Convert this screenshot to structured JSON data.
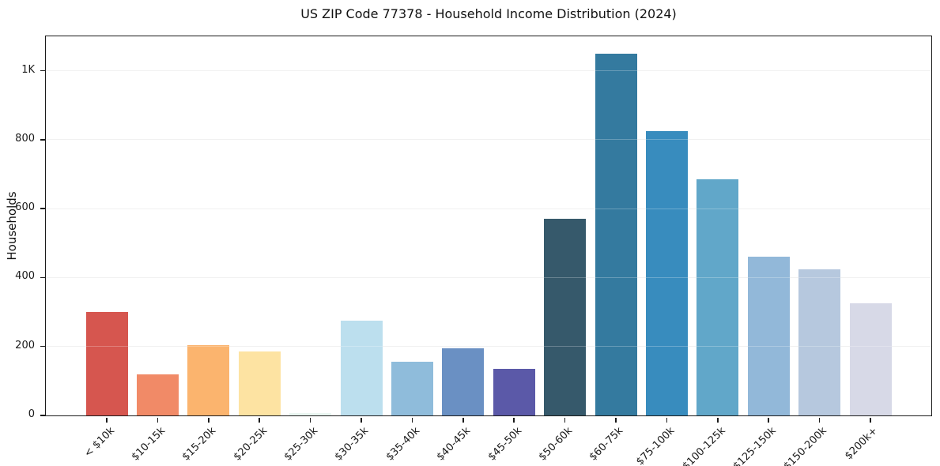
{
  "title": "US ZIP Code 77378 - Household Income Distribution (2024)",
  "chart_data": {
    "type": "bar",
    "title": "US ZIP Code 77378 - Household Income Distribution (2024)",
    "xlabel": "",
    "ylabel": "Households",
    "categories": [
      "< $10k",
      "$10-15k",
      "$15-20k",
      "$20-25k",
      "$25-30k",
      "$30-35k",
      "$35-40k",
      "$40-45k",
      "$45-50k",
      "$50-60k",
      "$60-75k",
      "$75-100k",
      "$100-125k",
      "$125-150k",
      "$150-200k",
      "$200k+"
    ],
    "values": [
      300,
      120,
      205,
      185,
      8,
      275,
      155,
      195,
      135,
      570,
      1050,
      825,
      685,
      460,
      425,
      325
    ],
    "bar_colors": [
      "#d6564f",
      "#f18a67",
      "#fbb46e",
      "#fde3a2",
      "#eaf6f1",
      "#bcdfee",
      "#8fbcdb",
      "#6a90c3",
      "#5b59a8",
      "#36596b",
      "#347a9f",
      "#388cbe",
      "#61a7c9",
      "#92b8d9",
      "#b6c8de",
      "#d7d9e7"
    ],
    "ylim": [
      0,
      1100
    ],
    "yticks": {
      "values": [
        0,
        200,
        400,
        600,
        800,
        1000
      ],
      "labels": [
        "0",
        "200",
        "400",
        "600",
        "800",
        "1K"
      ]
    },
    "grid": "horizontal",
    "grid_color": "#ececec",
    "background": "#ffffff",
    "spine_color": "#1a1a1a",
    "legend": null,
    "x_tick_rotation_deg": 45
  }
}
